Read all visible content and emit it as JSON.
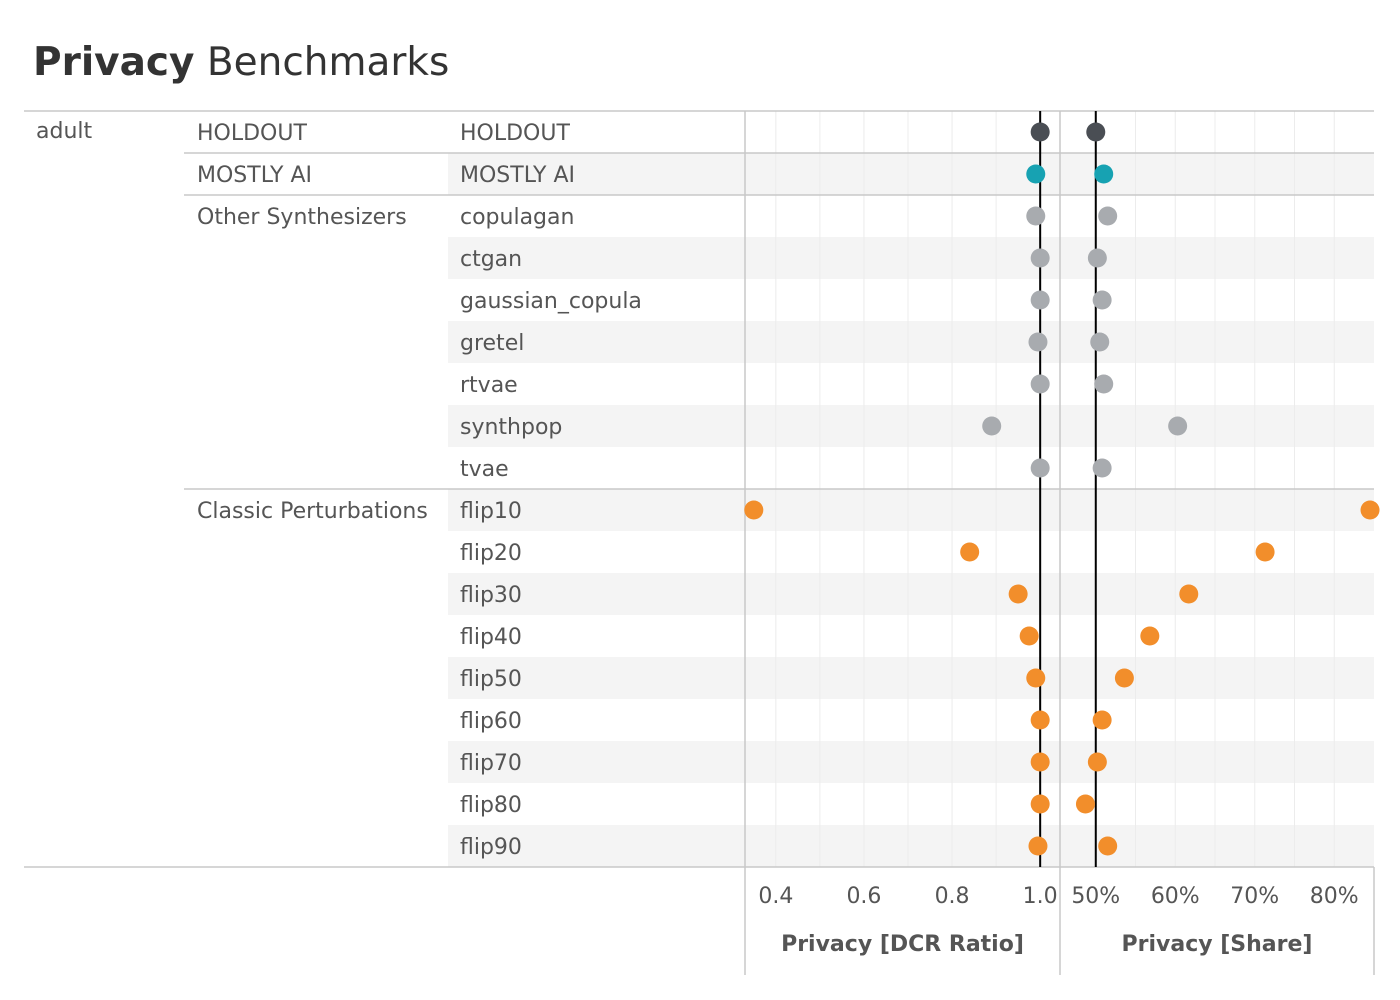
{
  "title_bold": "Privacy",
  "title_rest": "Benchmarks",
  "colors": {
    "holdout": "#4a4e54",
    "mostly_ai": "#17a2b2",
    "other": "#a8abaf",
    "perturbation": "#f28e2b",
    "reference_line": "#000000",
    "band": "#f4f4f4"
  },
  "chart_data": {
    "type": "scatter",
    "dataset": "adult",
    "groups": [
      {
        "label": "HOLDOUT",
        "rows": [
          "HOLDOUT"
        ],
        "color_key": "holdout"
      },
      {
        "label": "MOSTLY AI",
        "rows": [
          "MOSTLY AI"
        ],
        "color_key": "mostly_ai"
      },
      {
        "label": "Other Synthesizers",
        "rows": [
          "copulagan",
          "ctgan",
          "gaussian_copula",
          "gretel",
          "rtvae",
          "synthpop",
          "tvae"
        ],
        "color_key": "other"
      },
      {
        "label": "Classic Perturbations",
        "rows": [
          "flip10",
          "flip20",
          "flip30",
          "flip40",
          "flip50",
          "flip60",
          "flip70",
          "flip80",
          "flip90"
        ],
        "color_key": "perturbation"
      }
    ],
    "panels": [
      {
        "xlabel": "Privacy [DCR Ratio]",
        "ticks": [
          0.4,
          0.6,
          0.8,
          1.0
        ],
        "tick_labels": [
          "0.4",
          "0.6",
          "0.8",
          "1.0"
        ],
        "xlim": [
          0.33,
          1.045
        ],
        "reference": 1.0,
        "values": [
          1.0,
          0.99,
          0.99,
          1.0,
          1.0,
          0.995,
          1.0,
          0.89,
          1.0,
          0.35,
          0.84,
          0.95,
          0.975,
          0.99,
          1.0,
          1.0,
          1.0,
          0.995
        ]
      },
      {
        "xlabel": "Privacy [Share]",
        "ticks": [
          50,
          60,
          70,
          80
        ],
        "tick_labels": [
          "50%",
          "60%",
          "70%",
          "80%"
        ],
        "xlim": [
          45.5,
          85
        ],
        "reference": 50,
        "values": [
          50.0,
          51.0,
          51.5,
          50.2,
          50.8,
          50.5,
          51.0,
          60.3,
          50.8,
          84.5,
          71.3,
          61.7,
          56.8,
          53.6,
          50.8,
          50.2,
          48.7,
          51.5
        ]
      }
    ]
  }
}
